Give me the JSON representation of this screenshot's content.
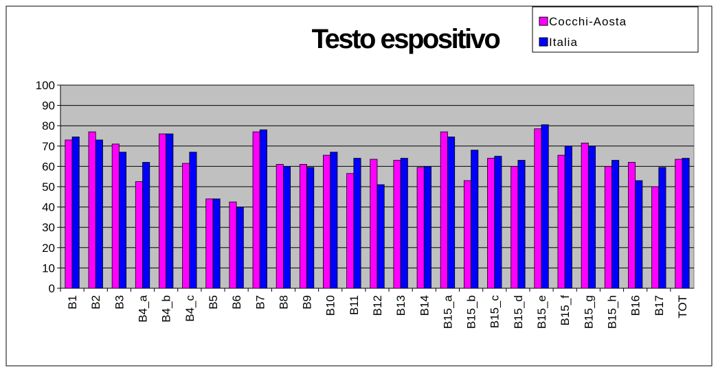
{
  "chart_data": {
    "type": "bar",
    "title": "Testo espositivo",
    "categories": [
      "B1",
      "B2",
      "B3",
      "B4_a",
      "B4_b",
      "B4_c",
      "B5",
      "B6",
      "B7",
      "B8",
      "B9",
      "B10",
      "B11",
      "B12",
      "B13",
      "B14",
      "B15_a",
      "B15_b",
      "B15_c",
      "B15_d",
      "B15_e",
      "B15_f",
      "B15_g",
      "B15_h",
      "B16",
      "B17",
      "TOT"
    ],
    "series": [
      {
        "name": "Cocchi-Aosta",
        "color": "#ff00ff",
        "values": [
          73,
          77,
          71,
          52.5,
          76,
          61.5,
          44,
          42.5,
          77,
          61,
          61,
          65.5,
          56.5,
          63.5,
          63,
          59.5,
          77,
          53,
          64,
          60,
          78.5,
          65.5,
          71.5,
          60,
          62,
          50,
          63.5
        ]
      },
      {
        "name": "Italia",
        "color": "#0000ff",
        "values": [
          74.5,
          73,
          67,
          62,
          76,
          67,
          44,
          40,
          78,
          60,
          59.5,
          67,
          64,
          51,
          64,
          60,
          74.5,
          68,
          65,
          63,
          80.5,
          70,
          70,
          63,
          53,
          59.5,
          64
        ]
      }
    ],
    "ylim": [
      0,
      100
    ],
    "yticks": [
      0,
      10,
      20,
      30,
      40,
      50,
      60,
      70,
      80,
      90,
      100
    ],
    "grid": true,
    "legend": "top-right"
  }
}
